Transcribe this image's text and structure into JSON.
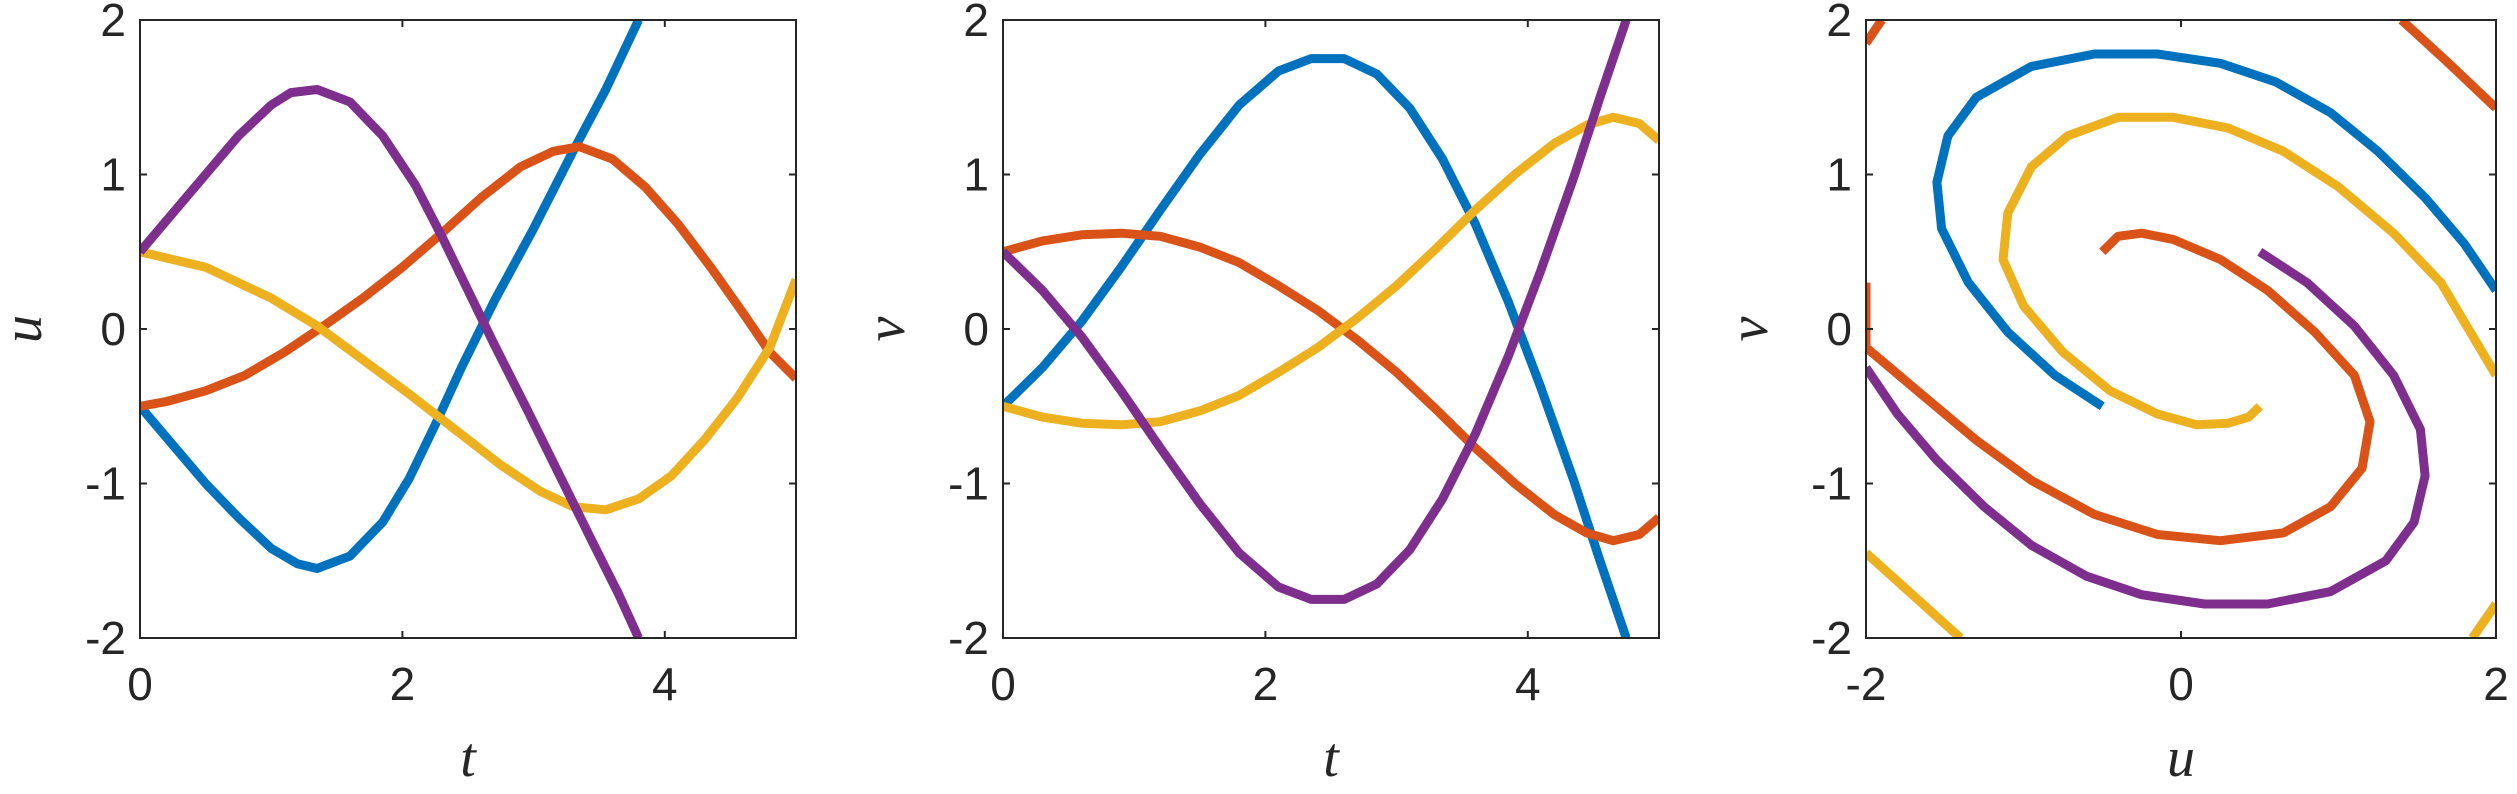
{
  "chart_data": [
    {
      "type": "line",
      "xlabel": "t",
      "ylabel": "u",
      "xlim": [
        0,
        5
      ],
      "ylim": [
        -2,
        2
      ],
      "xticks": [
        "0",
        "2",
        "4"
      ],
      "yticks": [
        "2",
        "1",
        "0",
        "-1",
        "-2"
      ],
      "grid": false,
      "series": [
        {
          "color": "#0072BD",
          "points": [
            [
              0,
              -0.5
            ],
            [
              0.25,
              -0.75
            ],
            [
              0.5,
              -1.0
            ],
            [
              0.75,
              -1.22
            ],
            [
              1.0,
              -1.42
            ],
            [
              1.2,
              -1.52
            ],
            [
              1.35,
              -1.55
            ],
            [
              1.6,
              -1.47
            ],
            [
              1.85,
              -1.25
            ],
            [
              2.05,
              -0.97
            ],
            [
              2.25,
              -0.62
            ],
            [
              2.45,
              -0.25
            ],
            [
              2.7,
              0.18
            ],
            [
              3.0,
              0.65
            ],
            [
              3.3,
              1.15
            ],
            [
              3.55,
              1.55
            ],
            [
              3.8,
              2.0
            ]
          ]
        },
        {
          "color": "#D95319",
          "points": [
            [
              0,
              -0.5
            ],
            [
              0.2,
              -0.47
            ],
            [
              0.5,
              -0.4
            ],
            [
              0.8,
              -0.3
            ],
            [
              1.1,
              -0.15
            ],
            [
              1.4,
              0.02
            ],
            [
              1.7,
              0.2
            ],
            [
              2.0,
              0.4
            ],
            [
              2.3,
              0.62
            ],
            [
              2.6,
              0.85
            ],
            [
              2.9,
              1.05
            ],
            [
              3.15,
              1.15
            ],
            [
              3.35,
              1.18
            ],
            [
              3.6,
              1.1
            ],
            [
              3.85,
              0.92
            ],
            [
              4.1,
              0.68
            ],
            [
              4.35,
              0.4
            ],
            [
              4.6,
              0.1
            ],
            [
              4.8,
              -0.15
            ],
            [
              5.0,
              -0.32
            ]
          ]
        },
        {
          "color": "#EDB120",
          "points": [
            [
              0,
              0.5
            ],
            [
              0.5,
              0.4
            ],
            [
              1.0,
              0.2
            ],
            [
              1.35,
              0.02
            ],
            [
              1.7,
              -0.2
            ],
            [
              2.05,
              -0.42
            ],
            [
              2.4,
              -0.65
            ],
            [
              2.75,
              -0.88
            ],
            [
              3.05,
              -1.05
            ],
            [
              3.3,
              -1.15
            ],
            [
              3.55,
              -1.17
            ],
            [
              3.8,
              -1.1
            ],
            [
              4.05,
              -0.95
            ],
            [
              4.3,
              -0.72
            ],
            [
              4.55,
              -0.45
            ],
            [
              4.8,
              -0.12
            ],
            [
              5.0,
              0.32
            ]
          ]
        },
        {
          "color": "#7E2F8E",
          "points": [
            [
              0,
              0.5
            ],
            [
              0.25,
              0.75
            ],
            [
              0.5,
              1.0
            ],
            [
              0.75,
              1.25
            ],
            [
              1.0,
              1.45
            ],
            [
              1.15,
              1.53
            ],
            [
              1.35,
              1.55
            ],
            [
              1.6,
              1.47
            ],
            [
              1.85,
              1.25
            ],
            [
              2.1,
              0.93
            ],
            [
              2.3,
              0.6
            ],
            [
              2.5,
              0.25
            ],
            [
              2.7,
              -0.1
            ],
            [
              2.95,
              -0.52
            ],
            [
              3.2,
              -0.95
            ],
            [
              3.45,
              -1.38
            ],
            [
              3.65,
              -1.72
            ],
            [
              3.8,
              -2.0
            ]
          ]
        }
      ]
    },
    {
      "type": "line",
      "xlabel": "t",
      "ylabel": "v",
      "xlim": [
        0,
        5
      ],
      "ylim": [
        -2,
        2
      ],
      "xticks": [
        "0",
        "2",
        "4"
      ],
      "yticks": [
        "2",
        "1",
        "0",
        "-1",
        "-2"
      ],
      "grid": false,
      "series": [
        {
          "color": "#0072BD",
          "points": [
            [
              0,
              -0.5
            ],
            [
              0.3,
              -0.25
            ],
            [
              0.6,
              0.05
            ],
            [
              0.9,
              0.4
            ],
            [
              1.2,
              0.77
            ],
            [
              1.5,
              1.13
            ],
            [
              1.8,
              1.45
            ],
            [
              2.1,
              1.67
            ],
            [
              2.35,
              1.75
            ],
            [
              2.6,
              1.75
            ],
            [
              2.85,
              1.65
            ],
            [
              3.1,
              1.43
            ],
            [
              3.35,
              1.1
            ],
            [
              3.6,
              0.68
            ],
            [
              3.85,
              0.18
            ],
            [
              4.1,
              -0.38
            ],
            [
              4.35,
              -0.98
            ],
            [
              4.55,
              -1.5
            ],
            [
              4.75,
              -2.0
            ]
          ]
        },
        {
          "color": "#D95319",
          "points": [
            [
              0,
              0.5
            ],
            [
              0.3,
              0.57
            ],
            [
              0.6,
              0.61
            ],
            [
              0.9,
              0.62
            ],
            [
              1.2,
              0.6
            ],
            [
              1.5,
              0.53
            ],
            [
              1.8,
              0.43
            ],
            [
              2.1,
              0.28
            ],
            [
              2.4,
              0.12
            ],
            [
              2.7,
              -0.07
            ],
            [
              3.0,
              -0.28
            ],
            [
              3.3,
              -0.52
            ],
            [
              3.6,
              -0.77
            ],
            [
              3.9,
              -1.0
            ],
            [
              4.2,
              -1.2
            ],
            [
              4.45,
              -1.32
            ],
            [
              4.65,
              -1.37
            ],
            [
              4.85,
              -1.33
            ],
            [
              5.0,
              -1.22
            ]
          ]
        },
        {
          "color": "#EDB120",
          "points": [
            [
              0,
              -0.5
            ],
            [
              0.3,
              -0.57
            ],
            [
              0.6,
              -0.61
            ],
            [
              0.9,
              -0.62
            ],
            [
              1.2,
              -0.6
            ],
            [
              1.5,
              -0.53
            ],
            [
              1.8,
              -0.43
            ],
            [
              2.1,
              -0.28
            ],
            [
              2.4,
              -0.12
            ],
            [
              2.7,
              0.07
            ],
            [
              3.0,
              0.28
            ],
            [
              3.3,
              0.52
            ],
            [
              3.6,
              0.77
            ],
            [
              3.9,
              1.0
            ],
            [
              4.2,
              1.2
            ],
            [
              4.45,
              1.32
            ],
            [
              4.65,
              1.37
            ],
            [
              4.85,
              1.33
            ],
            [
              5.0,
              1.22
            ]
          ]
        },
        {
          "color": "#7E2F8E",
          "points": [
            [
              0,
              0.5
            ],
            [
              0.3,
              0.25
            ],
            [
              0.6,
              -0.05
            ],
            [
              0.9,
              -0.4
            ],
            [
              1.2,
              -0.77
            ],
            [
              1.5,
              -1.13
            ],
            [
              1.8,
              -1.45
            ],
            [
              2.1,
              -1.67
            ],
            [
              2.35,
              -1.75
            ],
            [
              2.6,
              -1.75
            ],
            [
              2.85,
              -1.65
            ],
            [
              3.1,
              -1.43
            ],
            [
              3.35,
              -1.1
            ],
            [
              3.6,
              -0.68
            ],
            [
              3.85,
              -0.18
            ],
            [
              4.1,
              0.38
            ],
            [
              4.35,
              0.98
            ],
            [
              4.55,
              1.5
            ],
            [
              4.75,
              2.0
            ]
          ]
        }
      ]
    },
    {
      "type": "line",
      "xlabel": "u",
      "ylabel": "v",
      "xlim": [
        -2,
        2
      ],
      "ylim": [
        -2,
        2
      ],
      "xticks": [
        "-2",
        "0",
        "2"
      ],
      "yticks": [
        "2",
        "1",
        "0",
        "-1",
        "-2"
      ],
      "grid": false,
      "series": [
        {
          "color": "#0072BD",
          "segments": [
            [
              [
                -0.5,
                -0.5
              ],
              [
                -0.8,
                -0.3
              ],
              [
                -1.1,
                -0.02
              ],
              [
                -1.35,
                0.3
              ],
              [
                -1.52,
                0.65
              ],
              [
                -1.55,
                0.95
              ],
              [
                -1.48,
                1.25
              ],
              [
                -1.3,
                1.5
              ],
              [
                -0.95,
                1.7
              ],
              [
                -0.55,
                1.78
              ],
              [
                -0.15,
                1.78
              ],
              [
                0.25,
                1.72
              ],
              [
                0.6,
                1.6
              ],
              [
                0.95,
                1.4
              ],
              [
                1.25,
                1.15
              ],
              [
                1.55,
                0.85
              ],
              [
                1.8,
                0.55
              ],
              [
                2.0,
                0.25
              ]
            ]
          ]
        },
        {
          "color": "#D95319",
          "segments": [
            [
              [
                -0.5,
                0.5
              ],
              [
                -0.4,
                0.6
              ],
              [
                -0.25,
                0.62
              ],
              [
                -0.05,
                0.58
              ],
              [
                0.25,
                0.45
              ],
              [
                0.55,
                0.25
              ],
              [
                0.85,
                -0.02
              ],
              [
                1.1,
                -0.3
              ],
              [
                1.2,
                -0.6
              ],
              [
                1.15,
                -0.9
              ],
              [
                0.95,
                -1.15
              ],
              [
                0.65,
                -1.32
              ],
              [
                0.25,
                -1.37
              ],
              [
                -0.15,
                -1.33
              ],
              [
                -0.55,
                -1.2
              ],
              [
                -0.95,
                -0.98
              ],
              [
                -1.3,
                -0.72
              ],
              [
                -1.65,
                -0.42
              ],
              [
                -2.0,
                -0.12
              ],
              [
                -2.0,
                0.3
              ]
            ],
            [
              [
                -2.0,
                1.85
              ],
              [
                -1.9,
                2.0
              ]
            ],
            [
              [
                1.4,
                2.0
              ],
              [
                1.7,
                1.72
              ],
              [
                2.0,
                1.43
              ]
            ]
          ]
        },
        {
          "color": "#EDB120",
          "segments": [
            [
              [
                0.5,
                -0.5
              ],
              [
                0.43,
                -0.57
              ],
              [
                0.3,
                -0.61
              ],
              [
                0.1,
                -0.62
              ],
              [
                -0.15,
                -0.55
              ],
              [
                -0.45,
                -0.4
              ],
              [
                -0.75,
                -0.15
              ],
              [
                -1.0,
                0.15
              ],
              [
                -1.13,
                0.45
              ],
              [
                -1.1,
                0.75
              ],
              [
                -0.95,
                1.05
              ],
              [
                -0.72,
                1.25
              ],
              [
                -0.4,
                1.37
              ],
              [
                -0.05,
                1.37
              ],
              [
                0.3,
                1.3
              ],
              [
                0.65,
                1.15
              ],
              [
                1.0,
                0.92
              ],
              [
                1.35,
                0.62
              ],
              [
                1.65,
                0.3
              ],
              [
                2.0,
                -0.3
              ]
            ],
            [
              [
                -2.0,
                -1.45
              ],
              [
                -1.4,
                -2.0
              ]
            ],
            [
              [
                1.85,
                -2.0
              ],
              [
                2.0,
                -1.78
              ]
            ]
          ]
        },
        {
          "color": "#7E2F8E",
          "segments": [
            [
              [
                0.5,
                0.5
              ],
              [
                0.8,
                0.3
              ],
              [
                1.1,
                0.02
              ],
              [
                1.35,
                -0.3
              ],
              [
                1.52,
                -0.65
              ],
              [
                1.55,
                -0.95
              ],
              [
                1.48,
                -1.25
              ],
              [
                1.3,
                -1.5
              ],
              [
                0.95,
                -1.7
              ],
              [
                0.55,
                -1.78
              ],
              [
                0.15,
                -1.78
              ],
              [
                -0.25,
                -1.72
              ],
              [
                -0.6,
                -1.6
              ],
              [
                -0.95,
                -1.4
              ],
              [
                -1.25,
                -1.15
              ],
              [
                -1.55,
                -0.85
              ],
              [
                -1.8,
                -0.55
              ],
              [
                -2.0,
                -0.25
              ]
            ]
          ]
        }
      ]
    }
  ]
}
